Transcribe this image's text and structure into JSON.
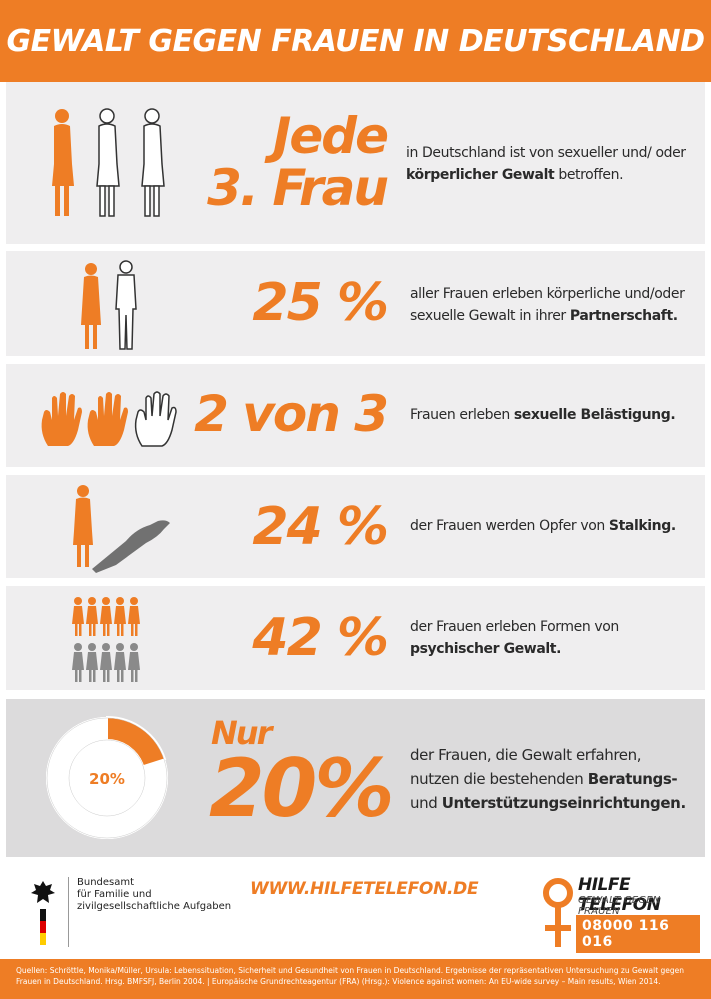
{
  "title": "GEWALT GEGEN FRAUEN IN DEUTSCHLAND",
  "colors": {
    "accent": "#ee7d25",
    "row_bg": "#efeeef",
    "row_last_bg": "#dcdbdc",
    "grey_figure": "#8a8a8a"
  },
  "stats": [
    {
      "value_line1": "Jede",
      "value_line2": "3. Frau",
      "desc_pre": "in Deutschland ist von sexueller und/ oder ",
      "desc_bold": "körperlicher Gewalt",
      "desc_post": " betroffen.",
      "icon": "three-women-figures-icon"
    },
    {
      "value": "25 %",
      "desc_pre": "aller Frauen erleben körperliche und/oder sexuelle Gewalt in ihrer ",
      "desc_bold": "Partnerschaft.",
      "desc_post": "",
      "icon": "woman-and-man-figures-icon"
    },
    {
      "value": "2 von 3",
      "desc_pre": "Frauen erleben ",
      "desc_bold": "sexuelle Belästigung.",
      "desc_post": "",
      "icon": "three-hands-icon"
    },
    {
      "value": "24 %",
      "desc_pre": "der Frauen werden Opfer von ",
      "desc_bold": "Stalking.",
      "desc_post": "",
      "icon": "woman-with-shadow-icon"
    },
    {
      "value": "42 %",
      "desc_pre": "der Frauen erleben Formen von ",
      "desc_bold": "psychischer Gewalt.",
      "desc_post": "",
      "icon": "figure-grid-icon"
    },
    {
      "value_prefix": "Nur",
      "value": "20%",
      "desc_line1": "der Frauen, die Gewalt erfahren,",
      "desc_line2_pre": "nutzen die bestehenden ",
      "desc_line2_bold": "Beratungs-",
      "desc_line3_pre": "und ",
      "desc_line3_bold": "Unterstützungseinrichtungen.",
      "donut_label": "20%",
      "donut_fraction": 0.2,
      "icon": "donut-chart-icon"
    }
  ],
  "figure_grid": {
    "orange_count": 5,
    "grey_count": 5
  },
  "footer": {
    "agency_line1": "Bundesamt",
    "agency_line2": "für Familie und",
    "agency_line3": "zivilgesellschaftliche Aufgaben",
    "url": "WWW.HILFETELEFON.DE",
    "hotline_name": "HILFE TELEFON",
    "hotline_sub": "GEWALT GEGEN FRAUEN",
    "hotline_number": "08000 116 016"
  },
  "sources": "Quellen: Schröttle, Monika/Müller, Ursula: Lebenssituation, Sicherheit und Gesundheit von Frauen in Deutschland. Ergebnisse der repräsentativen Untersuchung zu Gewalt gegen Frauen in Deutschland. Hrsg. BMFSFJ, Berlin 2004. | Europäische Grundrechteagentur (FRA) (Hrsg.): Violence against women: An EU-wide survey – Main results, Wien 2014."
}
